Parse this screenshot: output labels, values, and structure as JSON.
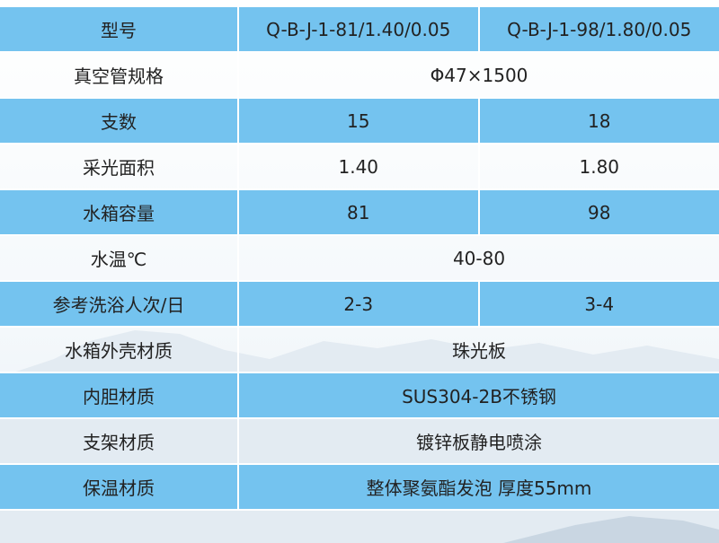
{
  "colors": {
    "row_blue": "#74c3ef",
    "row_white": "#ffffff"
  },
  "rows": [
    {
      "label": "型号",
      "values": [
        "Q-B-J-1-81/1.40/0.05",
        "Q-B-J-1-98/1.80/0.05"
      ]
    },
    {
      "label": "真空管规格",
      "values": [
        "Φ47×1500"
      ]
    },
    {
      "label": "支数",
      "values": [
        "15",
        "18"
      ]
    },
    {
      "label": "采光面积",
      "values": [
        "1.40",
        "1.80"
      ]
    },
    {
      "label": "水箱容量",
      "values": [
        "81",
        "98"
      ]
    },
    {
      "label": "水温℃",
      "values": [
        "40-80"
      ]
    },
    {
      "label": "参考洗浴人次/日",
      "values": [
        "2-3",
        "3-4"
      ]
    },
    {
      "label": "水箱外壳材质",
      "values": [
        "珠光板"
      ]
    },
    {
      "label": "内胆材质",
      "values": [
        "SUS304-2B不锈钢"
      ]
    },
    {
      "label": "支架材质",
      "values": [
        "镀锌板静电喷涂"
      ]
    },
    {
      "label": "保温材质",
      "values": [
        "整体聚氨酯发泡 厚度55mm"
      ]
    }
  ]
}
